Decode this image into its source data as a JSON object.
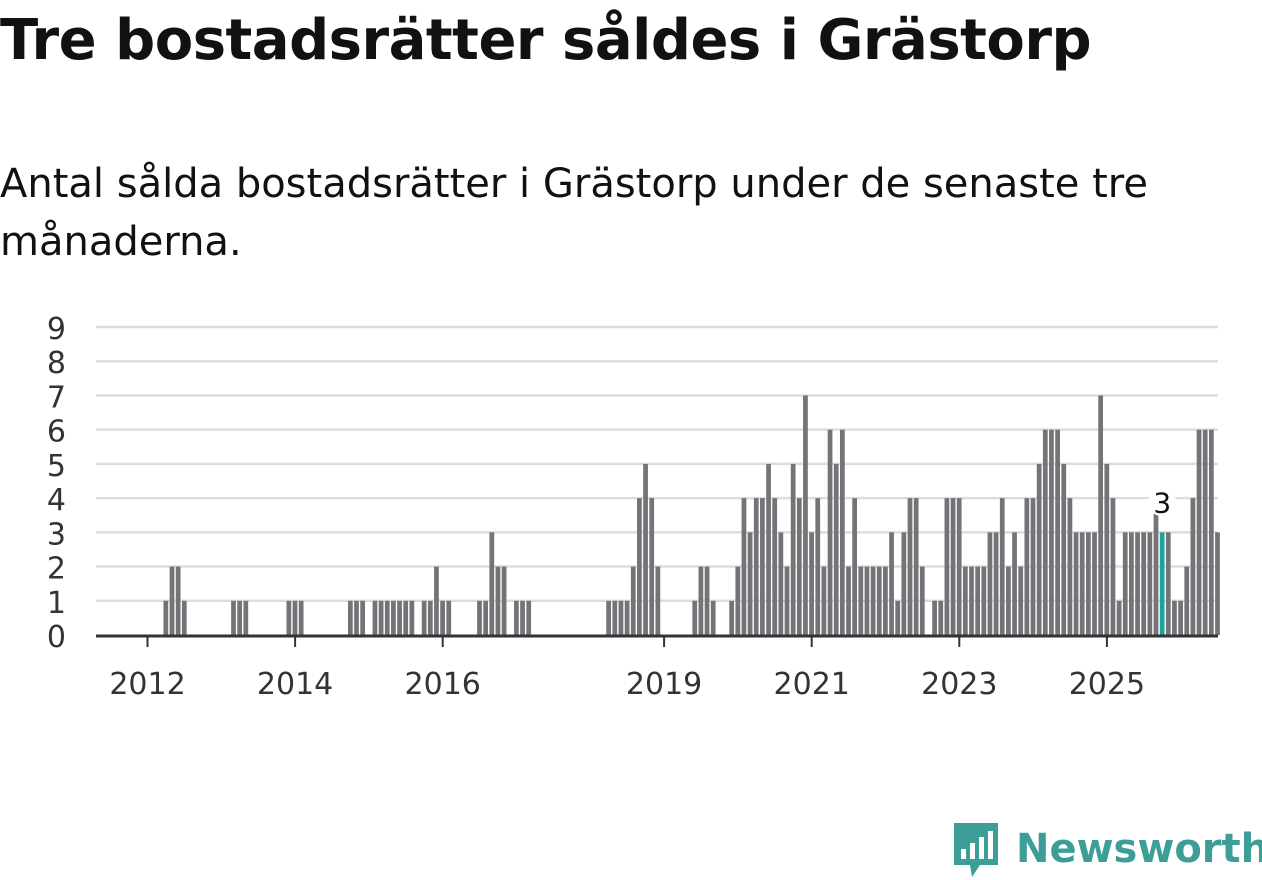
{
  "title": "Tre bostadsrätter såldes i Grästorp",
  "subtitle": "Antal sålda bostadsrätter i Grästorp under de senaste tre månaderna.",
  "brand": {
    "name": "Newsworthy",
    "color": "#3d9e98"
  },
  "colors": {
    "bar": "#747378",
    "highlight": "#1aa39a",
    "grid": "#dddddd",
    "axis": "#333333",
    "text": "#333333"
  },
  "chart_data": {
    "type": "bar",
    "title": "",
    "xlabel": "",
    "ylabel": "",
    "ylim": [
      0,
      9
    ],
    "yticks": [
      0,
      1,
      2,
      3,
      4,
      5,
      6,
      7,
      8,
      9
    ],
    "xticks": [
      {
        "label": "2012",
        "index": 11
      },
      {
        "label": "2014",
        "index": 35
      },
      {
        "label": "2016",
        "index": 59
      },
      {
        "label": "2019",
        "index": 95
      },
      {
        "label": "2021",
        "index": 119
      },
      {
        "label": "2023",
        "index": 143
      },
      {
        "label": "2025",
        "index": 167
      }
    ],
    "highlight_index": 176,
    "highlight_label": "3",
    "values": [
      0,
      0,
      0,
      0,
      0,
      0,
      0,
      0,
      0,
      0,
      0,
      0,
      0,
      0,
      1,
      2,
      2,
      1,
      0,
      0,
      0,
      0,
      0,
      0,
      0,
      1,
      1,
      1,
      0,
      0,
      0,
      0,
      0,
      0,
      1,
      1,
      1,
      0,
      0,
      0,
      0,
      0,
      0,
      0,
      1,
      1,
      1,
      0,
      1,
      1,
      1,
      1,
      1,
      1,
      1,
      0,
      1,
      1,
      2,
      1,
      1,
      0,
      0,
      0,
      0,
      1,
      1,
      3,
      2,
      2,
      0,
      1,
      1,
      1,
      0,
      0,
      0,
      0,
      0,
      0,
      0,
      0,
      0,
      0,
      0,
      0,
      1,
      1,
      1,
      1,
      2,
      4,
      5,
      4,
      2,
      0,
      0,
      0,
      0,
      0,
      1,
      2,
      2,
      1,
      0,
      0,
      1,
      2,
      4,
      3,
      4,
      4,
      5,
      4,
      3,
      2,
      5,
      4,
      7,
      3,
      4,
      2,
      6,
      5,
      6,
      2,
      4,
      2,
      2,
      2,
      2,
      2,
      3,
      1,
      3,
      4,
      4,
      2,
      0,
      1,
      1,
      4,
      4,
      4,
      2,
      2,
      2,
      2,
      3,
      3,
      4,
      2,
      3,
      2,
      4,
      4,
      5,
      6,
      6,
      6,
      5,
      4,
      3,
      3,
      3,
      3,
      7,
      5,
      4,
      1,
      3,
      3,
      3,
      3,
      3,
      4,
      3,
      3,
      1,
      1,
      2,
      4,
      6,
      6,
      6,
      3
    ]
  }
}
